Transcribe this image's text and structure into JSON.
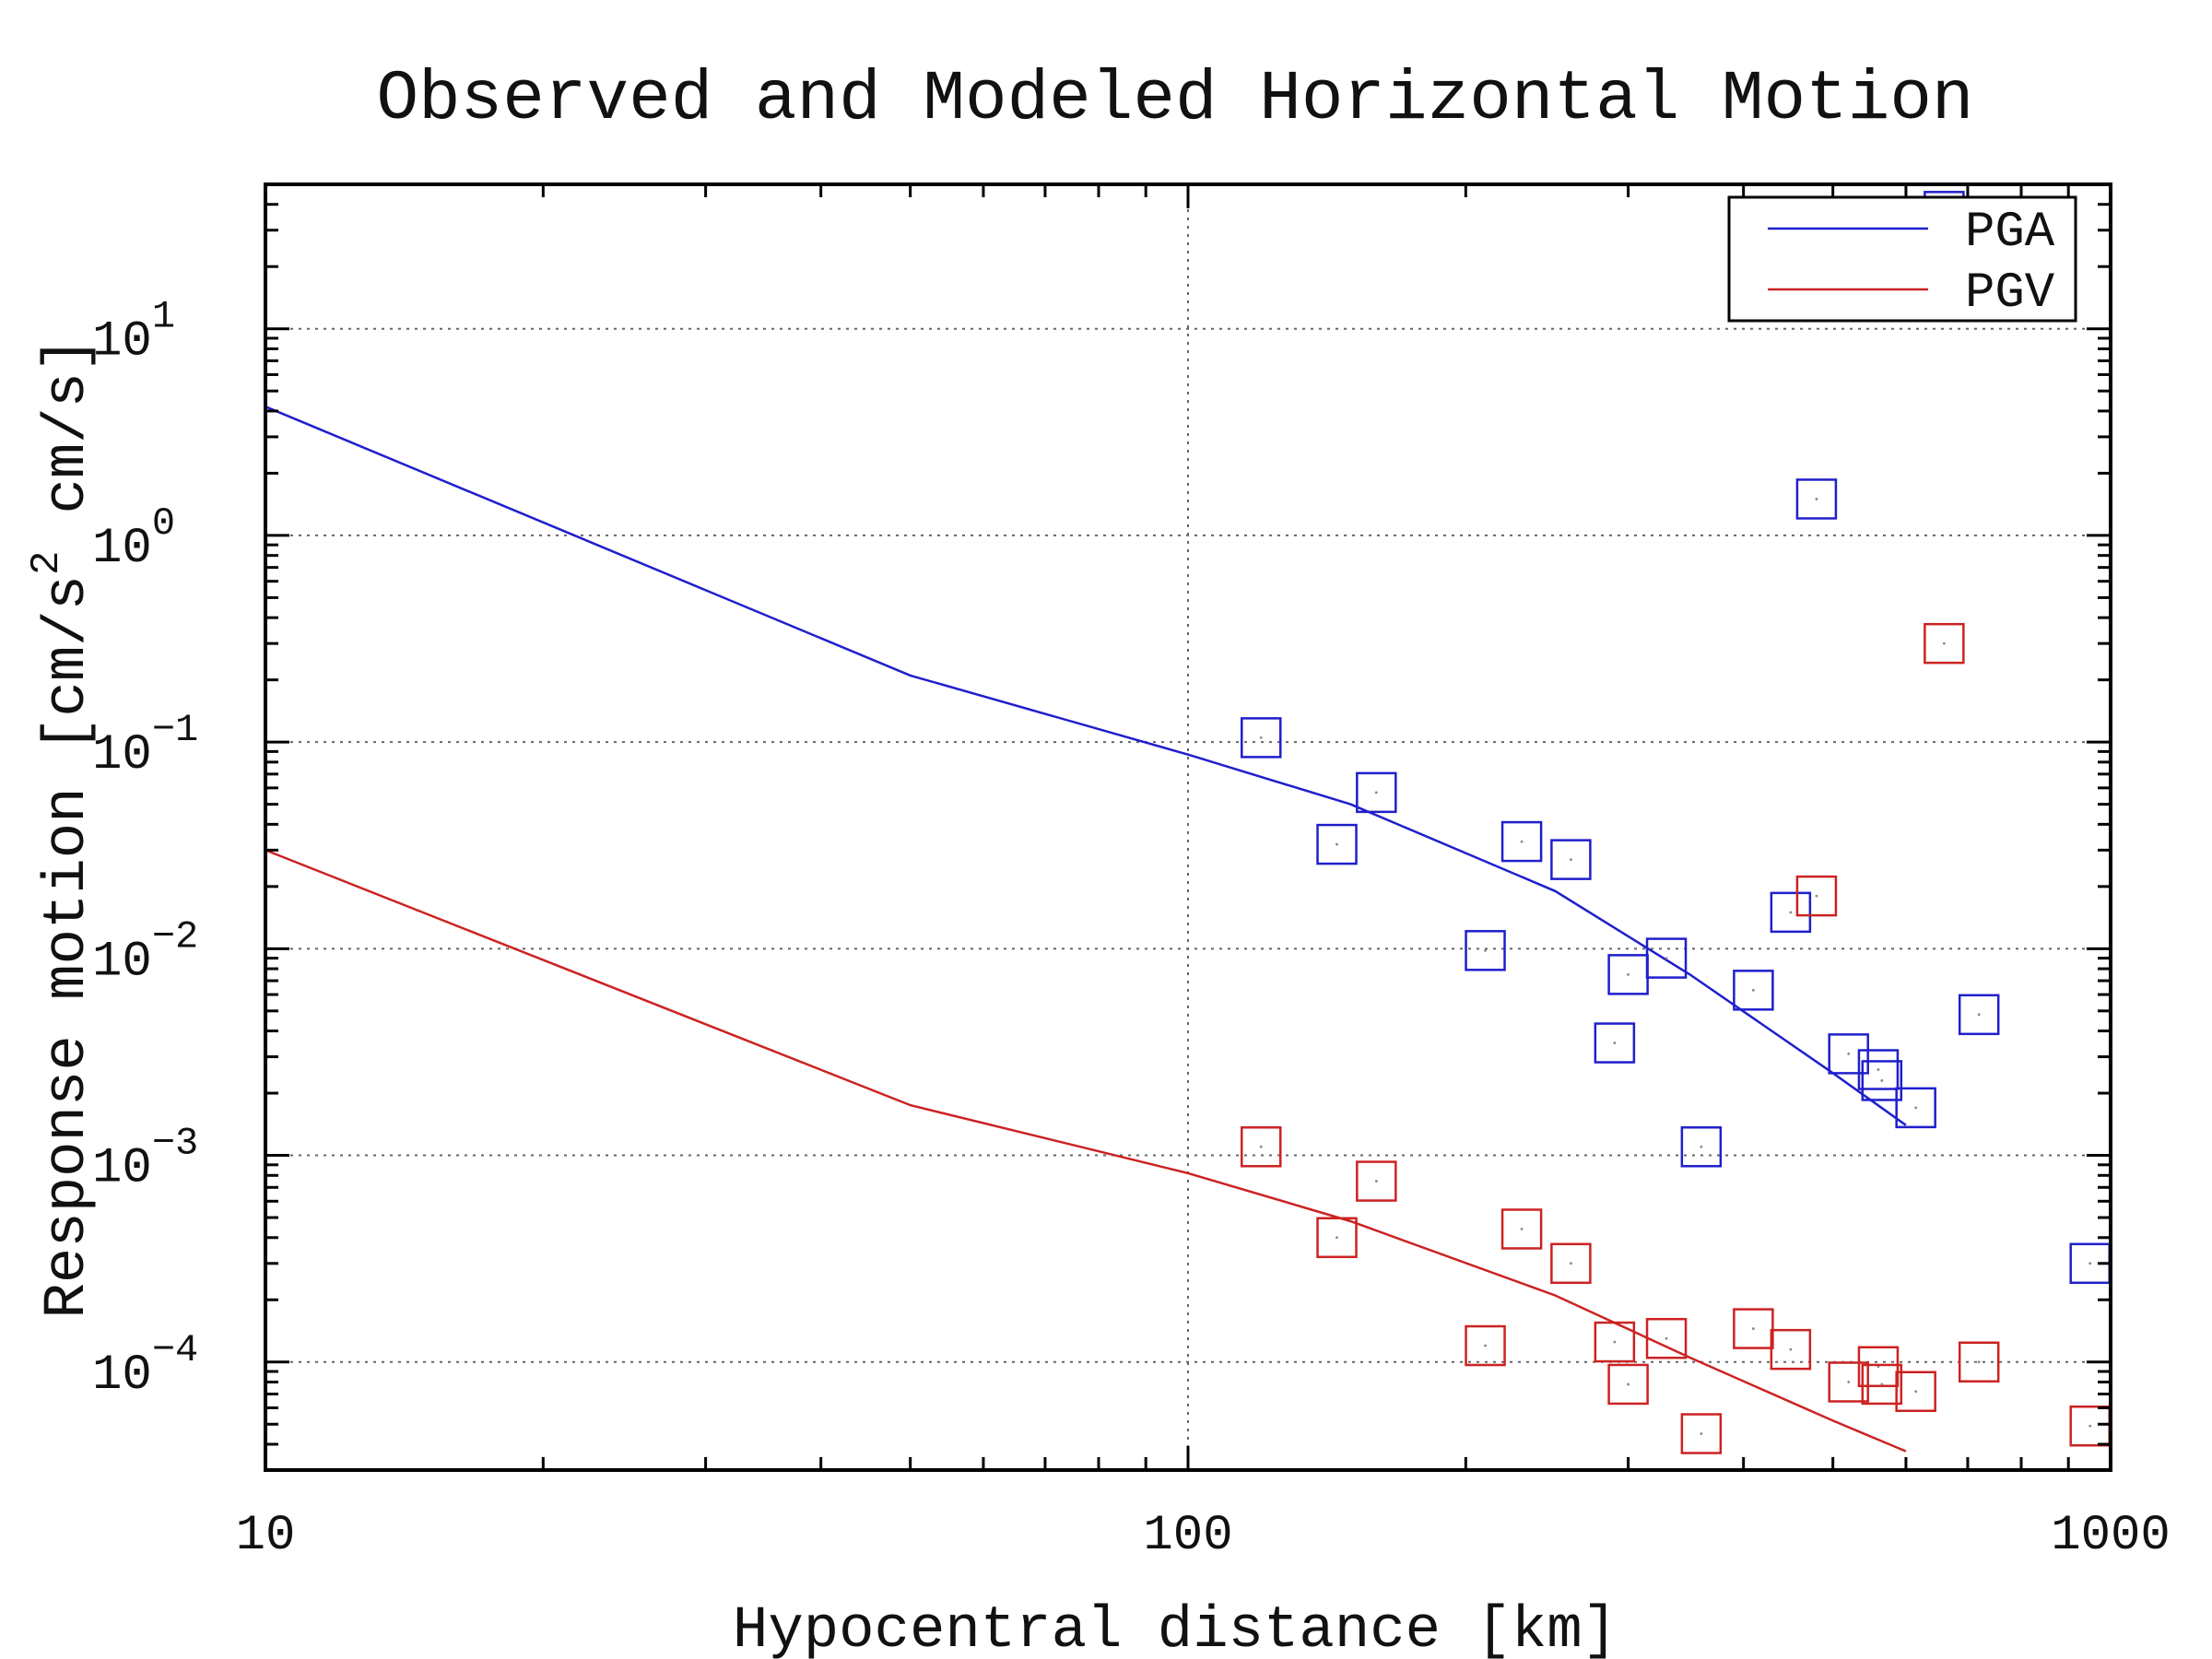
{
  "chart_data": {
    "type": "scatter",
    "title": "Observed and Modeled Horizontal Motion",
    "xlabel": "Hypocentral distance [km]",
    "ylabel": {
      "text": "Response motion [cm/s",
      "sup": "2",
      "tail": "cm/s]"
    },
    "x_scale": "log",
    "y_scale": "log",
    "xlim": [
      10,
      1000
    ],
    "ylim": [
      3e-05,
      50
    ],
    "x_ticks": [
      {
        "value": 10,
        "label": "10"
      },
      {
        "value": 100,
        "label": "100"
      },
      {
        "value": 1000,
        "label": "1000"
      }
    ],
    "y_ticks": [
      {
        "value": 0.0001,
        "base": "10",
        "exp": "−4"
      },
      {
        "value": 0.001,
        "base": "10",
        "exp": "−3"
      },
      {
        "value": 0.01,
        "base": "10",
        "exp": "−2"
      },
      {
        "value": 0.1,
        "base": "10",
        "exp": "−1"
      },
      {
        "value": 1,
        "base": "10",
        "exp": "0"
      },
      {
        "value": 10,
        "base": "10",
        "exp": "1"
      }
    ],
    "grid": true,
    "legend_position": "top-right",
    "series": [
      {
        "name": "PGA",
        "color": "#1f1fcc",
        "model_line": [
          [
            10,
            4.2
          ],
          [
            50,
            0.21
          ],
          [
            100,
            0.087
          ],
          [
            150,
            0.05
          ],
          [
            250,
            0.019
          ],
          [
            350,
            0.0075
          ],
          [
            500,
            0.0025
          ],
          [
            600,
            0.0014
          ]
        ],
        "observed": [
          [
            120,
            0.105
          ],
          [
            145,
            0.032
          ],
          [
            160,
            0.057
          ],
          [
            210,
            0.0098
          ],
          [
            230,
            0.033
          ],
          [
            260,
            0.027
          ],
          [
            290,
            0.0035
          ],
          [
            300,
            0.0075
          ],
          [
            330,
            0.009
          ],
          [
            360,
            0.0011
          ],
          [
            410,
            0.0063
          ],
          [
            450,
            0.015
          ],
          [
            480,
            1.5
          ],
          [
            520,
            0.0031
          ],
          [
            560,
            0.0026
          ],
          [
            565,
            0.0023
          ],
          [
            615,
            0.0017
          ],
          [
            660,
            37
          ],
          [
            720,
            0.0048
          ],
          [
            950,
            0.0003
          ]
        ]
      },
      {
        "name": "PGV",
        "color": "#cc2222",
        "model_line": [
          [
            10,
            0.03
          ],
          [
            50,
            0.00175
          ],
          [
            100,
            0.00082
          ],
          [
            150,
            0.00048
          ],
          [
            250,
            0.00021
          ],
          [
            350,
            0.000105
          ],
          [
            500,
            5.2e-05
          ],
          [
            600,
            3.7e-05
          ]
        ],
        "observed": [
          [
            120,
            0.0011
          ],
          [
            145,
            0.0004
          ],
          [
            160,
            0.00075
          ],
          [
            210,
            0.00012
          ],
          [
            230,
            0.00044
          ],
          [
            260,
            0.0003
          ],
          [
            290,
            0.000125
          ],
          [
            300,
            7.8e-05
          ],
          [
            330,
            0.00013
          ],
          [
            360,
            4.5e-05
          ],
          [
            410,
            0.000145
          ],
          [
            450,
            0.000115
          ],
          [
            480,
            0.018
          ],
          [
            520,
            8e-05
          ],
          [
            560,
            9.5e-05
          ],
          [
            565,
            7.8e-05
          ],
          [
            615,
            7.2e-05
          ],
          [
            660,
            0.3
          ],
          [
            720,
            0.0001
          ],
          [
            950,
            4.9e-05
          ]
        ]
      }
    ]
  }
}
